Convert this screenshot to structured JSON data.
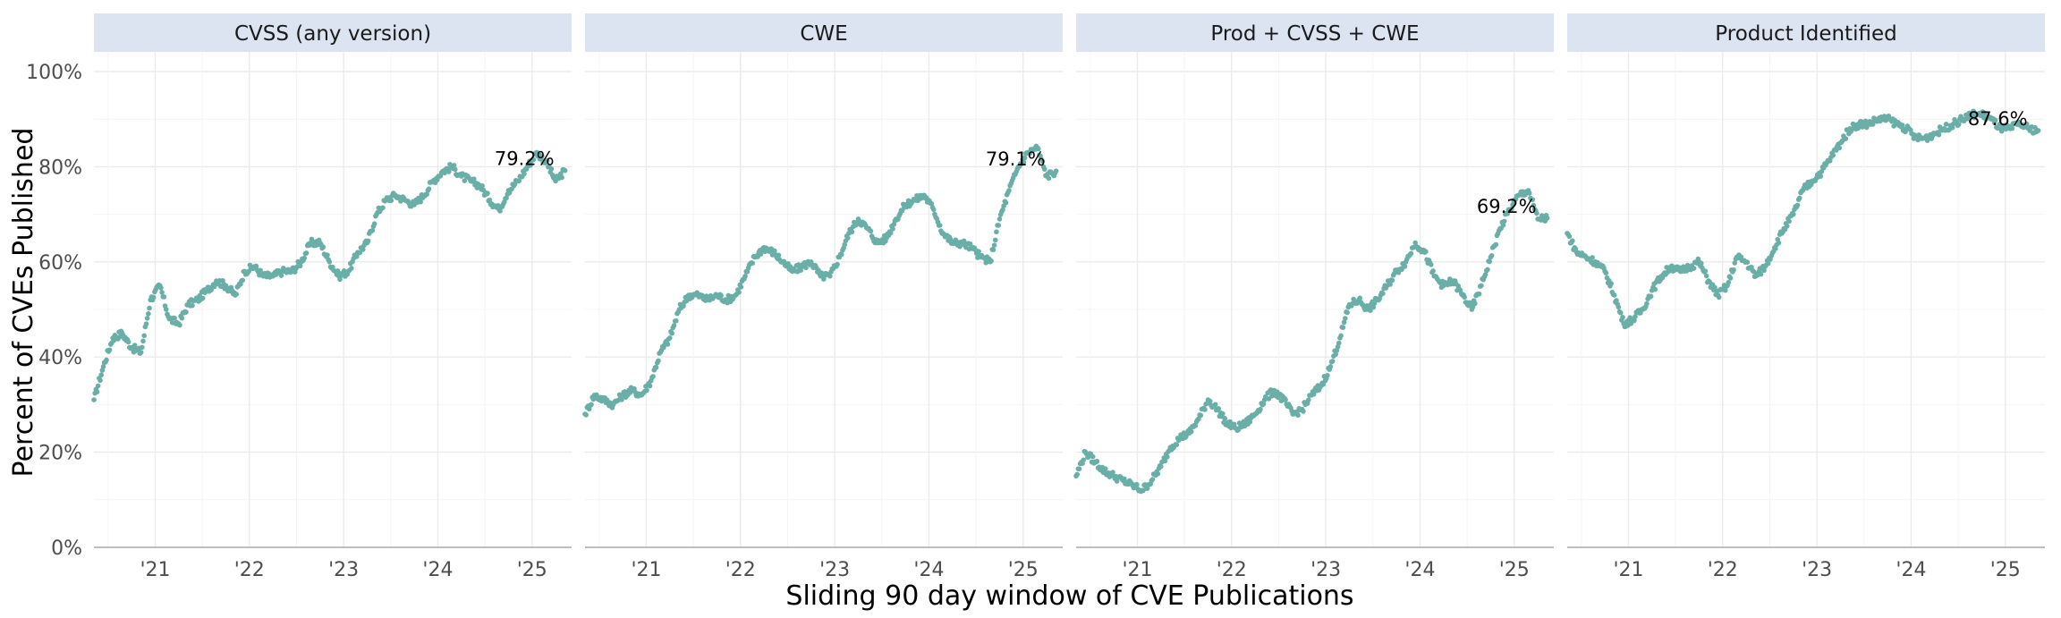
{
  "chart_data": {
    "type": "scatter",
    "ylabel": "Percent of CVEs Published",
    "xlabel": "Sliding 90 day window of CVE Publications",
    "ylim": [
      0,
      100
    ],
    "y_ticks": [
      "0%",
      "20%",
      "40%",
      "60%",
      "80%",
      "100%"
    ],
    "x_ticks": [
      "'21",
      "'22",
      "'23",
      "'24",
      "'25"
    ],
    "x_tick_years": [
      2021,
      2022,
      2023,
      2024,
      2025
    ],
    "xlim": [
      2020.35,
      2025.42
    ],
    "point_color": "#6aaea8",
    "strip_color": "#dce3f1",
    "grid": true,
    "panels": [
      {
        "name": "CVSS (any version)",
        "end_label": "79.2%",
        "points": [
          [
            2020.35,
            31
          ],
          [
            2020.45,
            38
          ],
          [
            2020.55,
            44
          ],
          [
            2020.65,
            45
          ],
          [
            2020.75,
            42
          ],
          [
            2020.85,
            41
          ],
          [
            2020.95,
            52
          ],
          [
            2021.05,
            55
          ],
          [
            2021.15,
            48
          ],
          [
            2021.25,
            47
          ],
          [
            2021.35,
            51
          ],
          [
            2021.45,
            52
          ],
          [
            2021.55,
            54
          ],
          [
            2021.65,
            56
          ],
          [
            2021.75,
            55
          ],
          [
            2021.85,
            53
          ],
          [
            2021.95,
            58
          ],
          [
            2022.05,
            59
          ],
          [
            2022.15,
            57
          ],
          [
            2022.25,
            57
          ],
          [
            2022.35,
            58
          ],
          [
            2022.45,
            58
          ],
          [
            2022.55,
            60
          ],
          [
            2022.65,
            64
          ],
          [
            2022.75,
            64
          ],
          [
            2022.85,
            60
          ],
          [
            2022.95,
            57
          ],
          [
            2023.05,
            58
          ],
          [
            2023.15,
            62
          ],
          [
            2023.25,
            64
          ],
          [
            2023.35,
            70
          ],
          [
            2023.45,
            73
          ],
          [
            2023.55,
            74
          ],
          [
            2023.65,
            73
          ],
          [
            2023.75,
            72
          ],
          [
            2023.85,
            74
          ],
          [
            2023.95,
            77
          ],
          [
            2024.05,
            79
          ],
          [
            2024.15,
            80
          ],
          [
            2024.25,
            78
          ],
          [
            2024.35,
            77
          ],
          [
            2024.45,
            76
          ],
          [
            2024.55,
            73
          ],
          [
            2024.65,
            71
          ],
          [
            2024.75,
            75
          ],
          [
            2024.85,
            77
          ],
          [
            2024.95,
            80
          ],
          [
            2025.05,
            83
          ],
          [
            2025.15,
            81
          ],
          [
            2025.25,
            77
          ],
          [
            2025.35,
            79.2
          ]
        ]
      },
      {
        "name": "CWE",
        "end_label": "79.1%",
        "points": [
          [
            2020.35,
            28
          ],
          [
            2020.45,
            32
          ],
          [
            2020.55,
            31
          ],
          [
            2020.65,
            30
          ],
          [
            2020.75,
            32
          ],
          [
            2020.85,
            33
          ],
          [
            2020.95,
            32
          ],
          [
            2021.05,
            35
          ],
          [
            2021.15,
            41
          ],
          [
            2021.25,
            44
          ],
          [
            2021.35,
            50
          ],
          [
            2021.45,
            53
          ],
          [
            2021.55,
            53
          ],
          [
            2021.65,
            52
          ],
          [
            2021.75,
            53
          ],
          [
            2021.85,
            52
          ],
          [
            2021.95,
            53
          ],
          [
            2022.05,
            57
          ],
          [
            2022.15,
            61
          ],
          [
            2022.25,
            63
          ],
          [
            2022.35,
            62
          ],
          [
            2022.45,
            60
          ],
          [
            2022.55,
            58
          ],
          [
            2022.65,
            59
          ],
          [
            2022.75,
            60
          ],
          [
            2022.85,
            57
          ],
          [
            2022.95,
            57
          ],
          [
            2023.05,
            61
          ],
          [
            2023.15,
            66
          ],
          [
            2023.25,
            69
          ],
          [
            2023.35,
            67
          ],
          [
            2023.45,
            64
          ],
          [
            2023.55,
            65
          ],
          [
            2023.65,
            69
          ],
          [
            2023.75,
            72
          ],
          [
            2023.85,
            73
          ],
          [
            2023.95,
            74
          ],
          [
            2024.05,
            71
          ],
          [
            2024.15,
            66
          ],
          [
            2024.25,
            64
          ],
          [
            2024.35,
            64
          ],
          [
            2024.45,
            63
          ],
          [
            2024.55,
            61
          ],
          [
            2024.65,
            60
          ],
          [
            2024.75,
            69
          ],
          [
            2024.85,
            75
          ],
          [
            2024.95,
            80
          ],
          [
            2025.05,
            83
          ],
          [
            2025.15,
            84
          ],
          [
            2025.25,
            78
          ],
          [
            2025.35,
            79.1
          ]
        ]
      },
      {
        "name": "Prod + CVSS + CWE",
        "end_label": "69.2%",
        "points": [
          [
            2020.35,
            15
          ],
          [
            2020.45,
            20
          ],
          [
            2020.55,
            18
          ],
          [
            2020.65,
            16
          ],
          [
            2020.75,
            15
          ],
          [
            2020.85,
            14
          ],
          [
            2020.95,
            13
          ],
          [
            2021.05,
            12
          ],
          [
            2021.15,
            14
          ],
          [
            2021.25,
            17
          ],
          [
            2021.35,
            21
          ],
          [
            2021.45,
            23
          ],
          [
            2021.55,
            24
          ],
          [
            2021.65,
            27
          ],
          [
            2021.75,
            31
          ],
          [
            2021.85,
            29
          ],
          [
            2021.95,
            26
          ],
          [
            2022.05,
            25
          ],
          [
            2022.15,
            26
          ],
          [
            2022.25,
            28
          ],
          [
            2022.35,
            31
          ],
          [
            2022.45,
            33
          ],
          [
            2022.55,
            31
          ],
          [
            2022.65,
            28
          ],
          [
            2022.75,
            29
          ],
          [
            2022.85,
            32
          ],
          [
            2022.95,
            34
          ],
          [
            2023.05,
            38
          ],
          [
            2023.15,
            44
          ],
          [
            2023.25,
            51
          ],
          [
            2023.35,
            52
          ],
          [
            2023.45,
            50
          ],
          [
            2023.55,
            52
          ],
          [
            2023.65,
            55
          ],
          [
            2023.75,
            58
          ],
          [
            2023.85,
            60
          ],
          [
            2023.95,
            64
          ],
          [
            2024.05,
            62
          ],
          [
            2024.15,
            57
          ],
          [
            2024.25,
            55
          ],
          [
            2024.35,
            56
          ],
          [
            2024.45,
            53
          ],
          [
            2024.55,
            50
          ],
          [
            2024.65,
            55
          ],
          [
            2024.75,
            61
          ],
          [
            2024.85,
            67
          ],
          [
            2024.95,
            71
          ],
          [
            2025.05,
            74
          ],
          [
            2025.15,
            75
          ],
          [
            2025.25,
            69
          ],
          [
            2025.35,
            69.2
          ]
        ]
      },
      {
        "name": "Product Identified",
        "end_label": "87.6%",
        "points": [
          [
            2020.35,
            66
          ],
          [
            2020.45,
            62
          ],
          [
            2020.55,
            61
          ],
          [
            2020.65,
            60
          ],
          [
            2020.75,
            58
          ],
          [
            2020.85,
            53
          ],
          [
            2020.95,
            47
          ],
          [
            2021.05,
            48
          ],
          [
            2021.15,
            50
          ],
          [
            2021.25,
            54
          ],
          [
            2021.35,
            57
          ],
          [
            2021.45,
            59
          ],
          [
            2021.55,
            58
          ],
          [
            2021.65,
            59
          ],
          [
            2021.75,
            60
          ],
          [
            2021.85,
            56
          ],
          [
            2021.95,
            53
          ],
          [
            2022.05,
            55
          ],
          [
            2022.15,
            61
          ],
          [
            2022.25,
            60
          ],
          [
            2022.35,
            57
          ],
          [
            2022.45,
            59
          ],
          [
            2022.55,
            63
          ],
          [
            2022.65,
            67
          ],
          [
            2022.75,
            70
          ],
          [
            2022.85,
            75
          ],
          [
            2022.95,
            77
          ],
          [
            2023.05,
            79
          ],
          [
            2023.15,
            82
          ],
          [
            2023.25,
            85
          ],
          [
            2023.35,
            88
          ],
          [
            2023.45,
            89
          ],
          [
            2023.55,
            89
          ],
          [
            2023.65,
            90
          ],
          [
            2023.75,
            90
          ],
          [
            2023.85,
            89
          ],
          [
            2023.95,
            88
          ],
          [
            2024.05,
            86
          ],
          [
            2024.15,
            86
          ],
          [
            2024.25,
            87
          ],
          [
            2024.35,
            88
          ],
          [
            2024.45,
            89
          ],
          [
            2024.55,
            90
          ],
          [
            2024.65,
            91
          ],
          [
            2024.75,
            91
          ],
          [
            2024.85,
            90
          ],
          [
            2024.95,
            88
          ],
          [
            2025.05,
            88
          ],
          [
            2025.15,
            89
          ],
          [
            2025.25,
            88
          ],
          [
            2025.35,
            87.6
          ]
        ]
      }
    ]
  }
}
